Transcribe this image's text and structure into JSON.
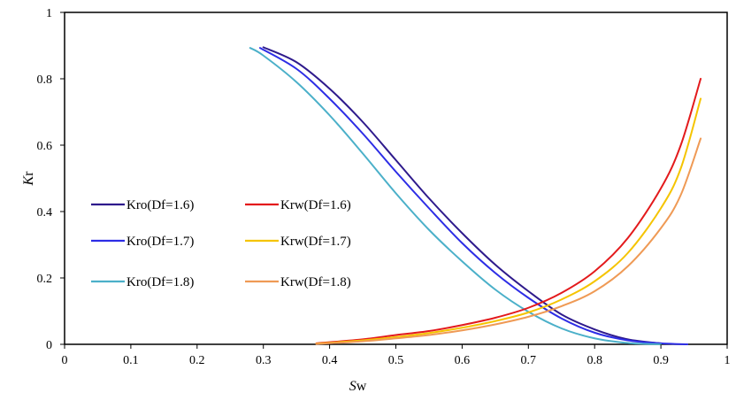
{
  "chart_data": {
    "type": "line",
    "xlabel": {
      "italic": "S",
      "rest": "w"
    },
    "ylabel": {
      "italic": "K",
      "rest": "r"
    },
    "xlim": [
      0,
      1
    ],
    "ylim": [
      0,
      1
    ],
    "x_ticks": [
      "0",
      "0.1",
      "0.2",
      "0.3",
      "0.4",
      "0.5",
      "0.6",
      "0.7",
      "0.8",
      "0.9",
      "1"
    ],
    "y_ticks": [
      "0",
      "0.2",
      "0.4",
      "0.6",
      "0.8",
      "1"
    ],
    "grid": false,
    "legend_position": "middle-left",
    "series": [
      {
        "name": "Kro(Df=1.6)",
        "color": "#2e1a8c",
        "x": [
          0.3,
          0.35,
          0.4,
          0.45,
          0.5,
          0.55,
          0.6,
          0.65,
          0.7,
          0.75,
          0.8,
          0.85,
          0.9
        ],
        "y": [
          0.895,
          0.85,
          0.77,
          0.67,
          0.555,
          0.44,
          0.335,
          0.24,
          0.16,
          0.09,
          0.045,
          0.015,
          0.003
        ]
      },
      {
        "name": "Kro(Df=1.7)",
        "color": "#2d2de6",
        "x": [
          0.295,
          0.35,
          0.4,
          0.45,
          0.5,
          0.55,
          0.6,
          0.65,
          0.7,
          0.75,
          0.8,
          0.85,
          0.9,
          0.94
        ],
        "y": [
          0.893,
          0.83,
          0.74,
          0.635,
          0.52,
          0.41,
          0.305,
          0.215,
          0.14,
          0.078,
          0.035,
          0.012,
          0.003,
          0.0
        ]
      },
      {
        "name": "Kro(Df=1.8)",
        "color": "#4bb0c9",
        "x": [
          0.28,
          0.3,
          0.35,
          0.4,
          0.45,
          0.5,
          0.55,
          0.6,
          0.65,
          0.7,
          0.75,
          0.8,
          0.85,
          0.9
        ],
        "y": [
          0.893,
          0.87,
          0.79,
          0.69,
          0.575,
          0.455,
          0.345,
          0.25,
          0.165,
          0.098,
          0.048,
          0.018,
          0.004,
          0.0
        ]
      },
      {
        "name": "Krw(Df=1.6)",
        "color": "#e31a1c",
        "x": [
          0.38,
          0.45,
          0.5,
          0.55,
          0.6,
          0.65,
          0.7,
          0.75,
          0.8,
          0.85,
          0.9,
          0.93,
          0.96
        ],
        "y": [
          0.003,
          0.015,
          0.028,
          0.04,
          0.058,
          0.08,
          0.11,
          0.155,
          0.22,
          0.32,
          0.47,
          0.6,
          0.8
        ]
      },
      {
        "name": "Krw(Df=1.7)",
        "color": "#f5c400",
        "x": [
          0.38,
          0.45,
          0.5,
          0.55,
          0.6,
          0.65,
          0.7,
          0.75,
          0.8,
          0.85,
          0.9,
          0.93,
          0.96
        ],
        "y": [
          0.002,
          0.012,
          0.022,
          0.034,
          0.05,
          0.07,
          0.096,
          0.135,
          0.19,
          0.275,
          0.41,
          0.53,
          0.74
        ]
      },
      {
        "name": "Krw(Df=1.8)",
        "color": "#ef9a55",
        "x": [
          0.38,
          0.45,
          0.5,
          0.55,
          0.6,
          0.65,
          0.7,
          0.75,
          0.8,
          0.85,
          0.9,
          0.93,
          0.96
        ],
        "y": [
          0.001,
          0.009,
          0.018,
          0.028,
          0.042,
          0.06,
          0.083,
          0.115,
          0.16,
          0.235,
          0.35,
          0.45,
          0.62
        ]
      }
    ]
  }
}
